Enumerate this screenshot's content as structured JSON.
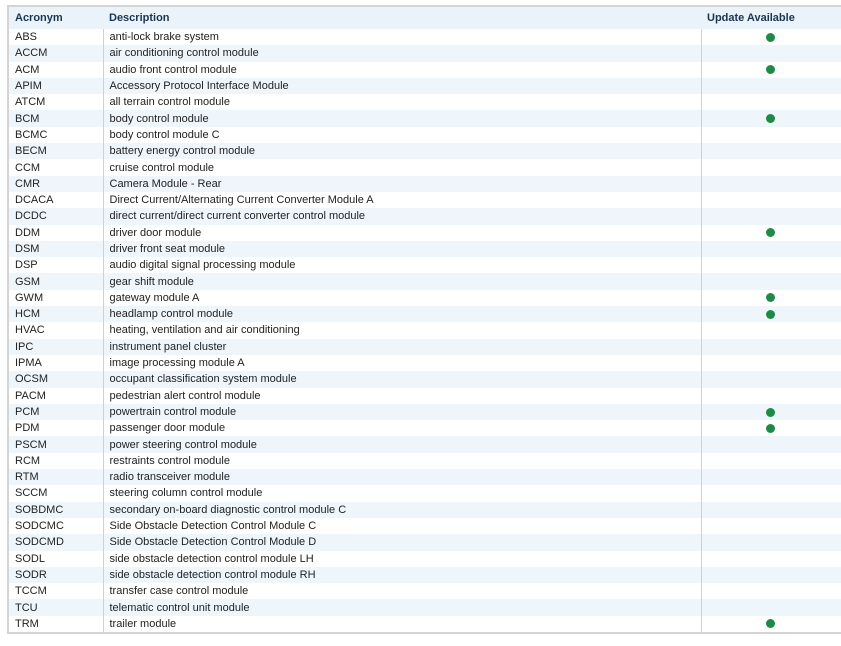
{
  "table": {
    "headers": [
      "Acronym",
      "Description",
      "Update Available"
    ],
    "rows": [
      {
        "acronym": "ABS",
        "description": "anti-lock brake system",
        "update": true
      },
      {
        "acronym": "ACCM",
        "description": "air conditioning control module",
        "update": false
      },
      {
        "acronym": "ACM",
        "description": "audio front control module",
        "update": true
      },
      {
        "acronym": "APIM",
        "description": "Accessory Protocol Interface Module",
        "update": false
      },
      {
        "acronym": "ATCM",
        "description": "all terrain control module",
        "update": false
      },
      {
        "acronym": "BCM",
        "description": "body control module",
        "update": true
      },
      {
        "acronym": "BCMC",
        "description": "body control module C",
        "update": false
      },
      {
        "acronym": "BECM",
        "description": "battery energy control module",
        "update": false
      },
      {
        "acronym": "CCM",
        "description": "cruise control module",
        "update": false
      },
      {
        "acronym": "CMR",
        "description": "Camera Module - Rear",
        "update": false
      },
      {
        "acronym": "DCACA",
        "description": "Direct Current/Alternating Current Converter Module A",
        "update": false
      },
      {
        "acronym": "DCDC",
        "description": "direct current/direct current converter control module",
        "update": false
      },
      {
        "acronym": "DDM",
        "description": "driver door module",
        "update": true
      },
      {
        "acronym": "DSM",
        "description": "driver front seat module",
        "update": false
      },
      {
        "acronym": "DSP",
        "description": "audio digital signal processing module",
        "update": false
      },
      {
        "acronym": "GSM",
        "description": "gear shift module",
        "update": false
      },
      {
        "acronym": "GWM",
        "description": "gateway module A",
        "update": true
      },
      {
        "acronym": "HCM",
        "description": "headlamp control module",
        "update": true
      },
      {
        "acronym": "HVAC",
        "description": "heating, ventilation and air conditioning",
        "update": false
      },
      {
        "acronym": "IPC",
        "description": "instrument panel cluster",
        "update": false
      },
      {
        "acronym": "IPMA",
        "description": "image processing module A",
        "update": false
      },
      {
        "acronym": "OCSM",
        "description": "occupant classification system module",
        "update": false
      },
      {
        "acronym": "PACM",
        "description": "pedestrian alert control module",
        "update": false
      },
      {
        "acronym": "PCM",
        "description": "powertrain control module",
        "update": true
      },
      {
        "acronym": "PDM",
        "description": "passenger door module",
        "update": true
      },
      {
        "acronym": "PSCM",
        "description": "power steering control module",
        "update": false
      },
      {
        "acronym": "RCM",
        "description": "restraints control module",
        "update": false
      },
      {
        "acronym": "RTM",
        "description": "radio transceiver module",
        "update": false
      },
      {
        "acronym": "SCCM",
        "description": "steering column control module",
        "update": false
      },
      {
        "acronym": "SOBDMC",
        "description": "secondary on-board diagnostic control module C",
        "update": false
      },
      {
        "acronym": "SODCMC",
        "description": "Side Obstacle Detection Control Module C",
        "update": false
      },
      {
        "acronym": "SODCMD",
        "description": "Side Obstacle Detection Control Module D",
        "update": false
      },
      {
        "acronym": "SODL",
        "description": "side obstacle detection control module LH",
        "update": false
      },
      {
        "acronym": "SODR",
        "description": "side obstacle detection control module RH",
        "update": false
      },
      {
        "acronym": "TCCM",
        "description": "transfer case control module",
        "update": false
      },
      {
        "acronym": "TCU",
        "description": "telematic control unit module",
        "update": false
      },
      {
        "acronym": "TRM",
        "description": "trailer module",
        "update": true
      }
    ]
  }
}
